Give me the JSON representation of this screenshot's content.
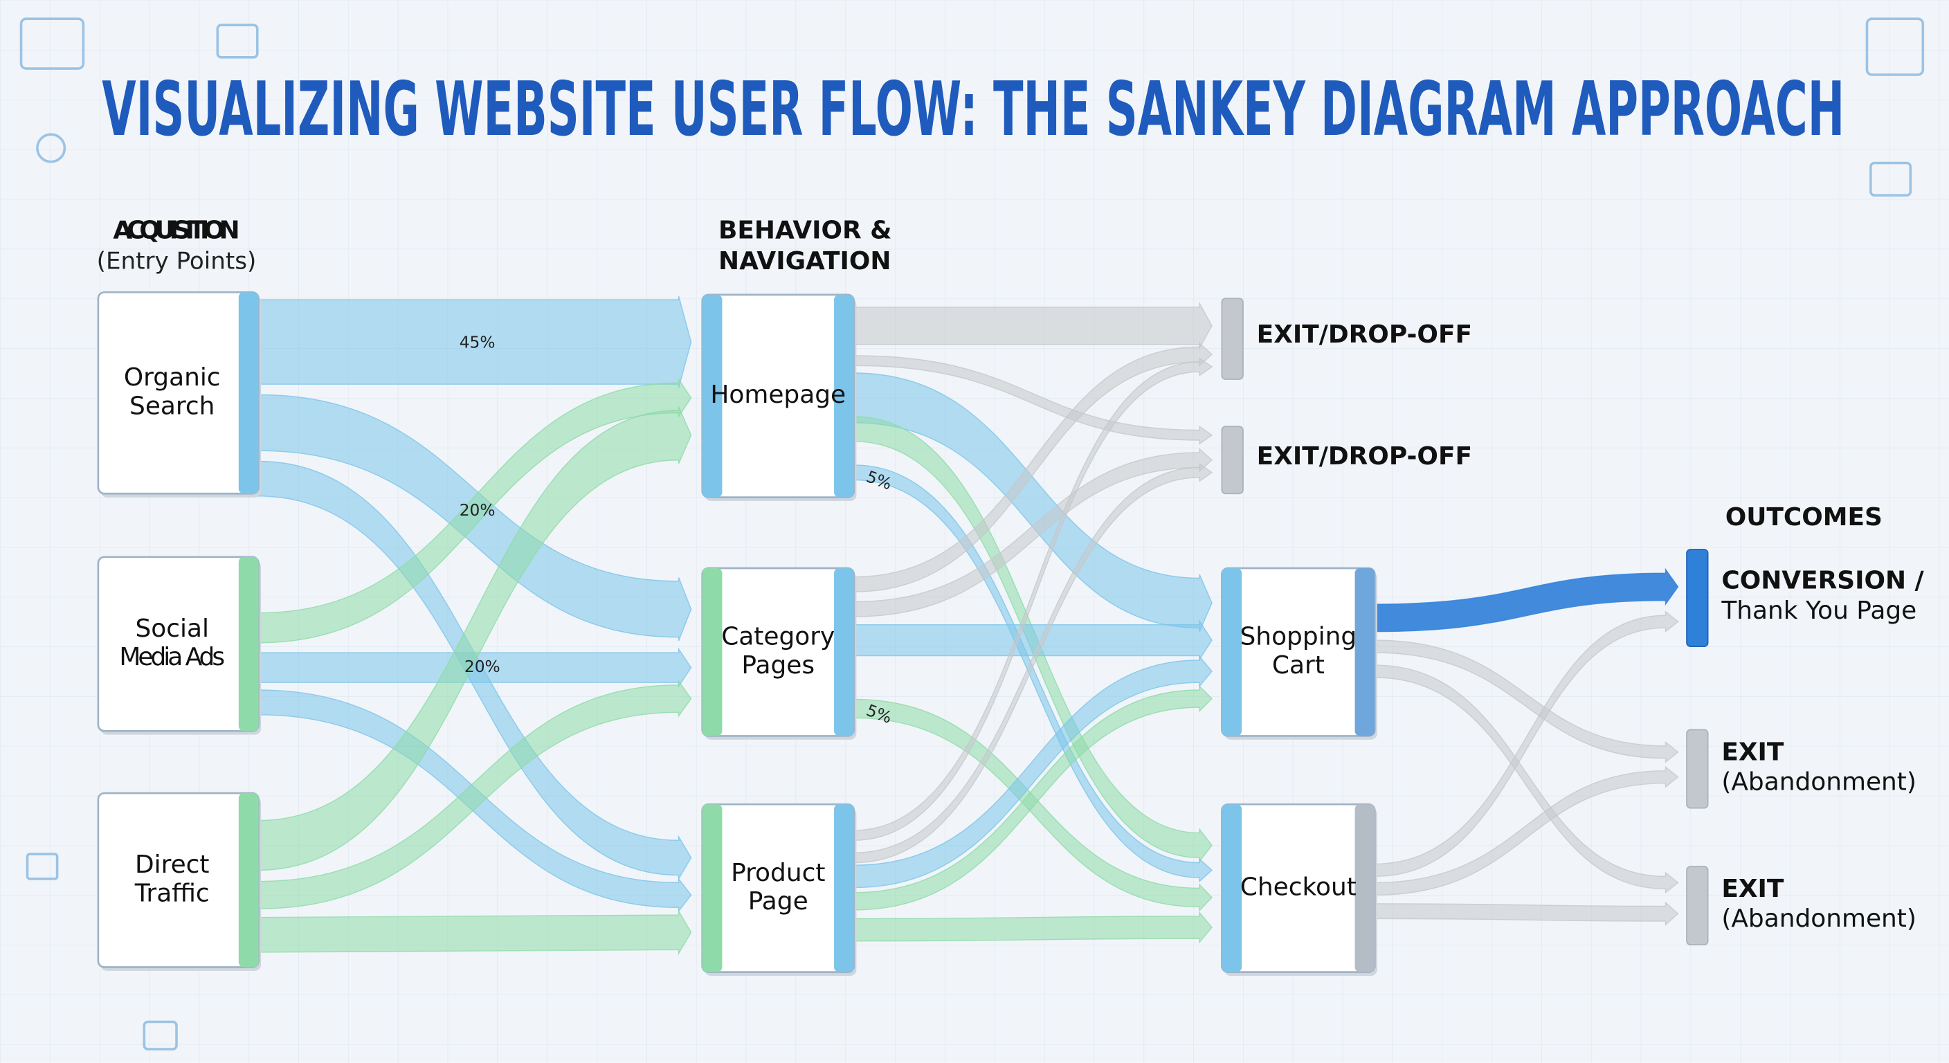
{
  "title": "VISUALIZING WEBSITE USER FLOW: THE SANKEY DIAGRAM APPROACH",
  "columns": [
    {
      "title": [
        "ACQUISITION"
      ],
      "subtitle": "(Entry Points)"
    },
    {
      "title": [
        "BEHAVIOR &",
        "NAVIGATION"
      ]
    },
    {
      "title": [
        "OUTCOMES"
      ]
    }
  ],
  "nodes": [
    {
      "label": [
        "Organic",
        "Search"
      ]
    },
    {
      "label": [
        "Social",
        "Media Ads"
      ]
    },
    {
      "label": [
        "Direct",
        "Traffic"
      ]
    },
    {
      "label": [
        "Homepage"
      ]
    },
    {
      "label": [
        "Category",
        "Pages"
      ]
    },
    {
      "label": [
        "Product",
        "Page"
      ]
    },
    {
      "label": [
        "EXIT/DROP-OFF"
      ]
    },
    {
      "label": [
        "EXIT/DROP-OFF"
      ]
    },
    {
      "label": [
        "Shopping",
        "Cart"
      ]
    },
    {
      "label": [
        "Checkout"
      ]
    },
    {
      "label": [
        "CONVERSION /",
        "Thank You Page"
      ]
    },
    {
      "label": [
        "EXIT",
        "(Abandonment)"
      ]
    },
    {
      "label": [
        "EXIT",
        "(Abandonment)"
      ]
    }
  ],
  "flow_labels": [
    "45%",
    "20%",
    "20%",
    "5%",
    "5%"
  ]
}
